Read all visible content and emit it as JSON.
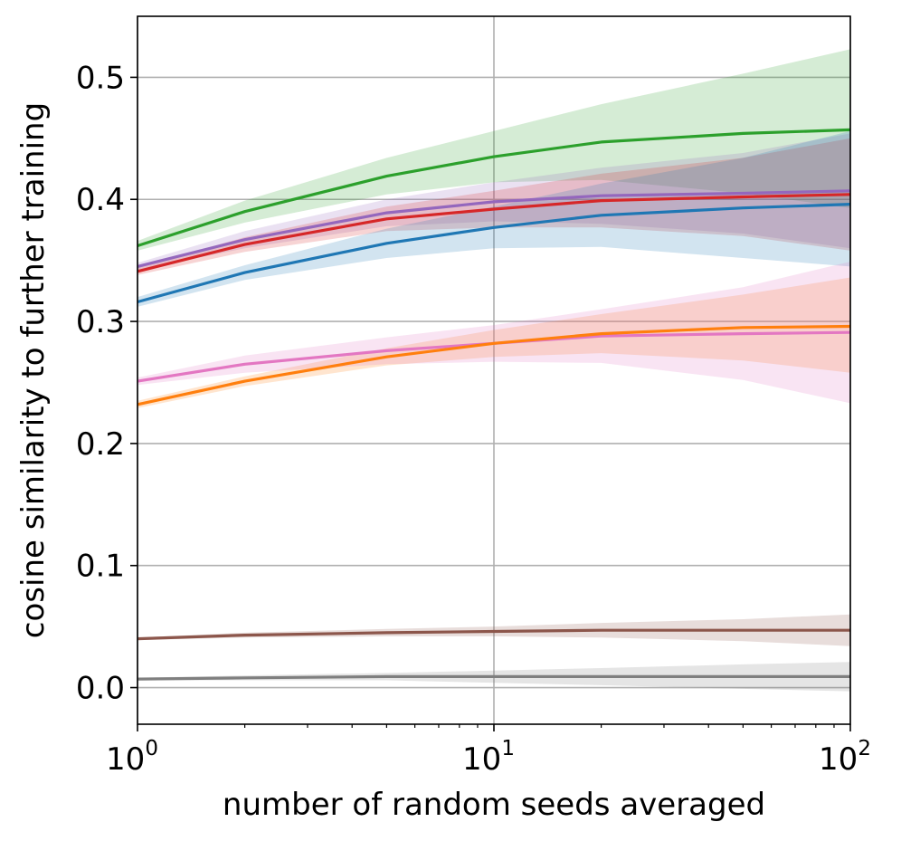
{
  "chart_data": {
    "type": "line",
    "title": "",
    "xlabel": "number of random seeds averaged",
    "ylabel": "cosine similarity to further training",
    "xscale": "log",
    "xlim": [
      1,
      100
    ],
    "ylim": [
      -0.03,
      0.55
    ],
    "x_ticks": [
      {
        "value": 1,
        "base": "10",
        "exp": "0"
      },
      {
        "value": 10,
        "base": "10",
        "exp": "1"
      },
      {
        "value": 100,
        "base": "10",
        "exp": "2"
      }
    ],
    "y_ticks": [
      {
        "value": 0.0,
        "label": "0.0"
      },
      {
        "value": 0.1,
        "label": "0.1"
      },
      {
        "value": 0.2,
        "label": "0.2"
      },
      {
        "value": 0.3,
        "label": "0.3"
      },
      {
        "value": 0.4,
        "label": "0.4"
      },
      {
        "value": 0.5,
        "label": "0.5"
      }
    ],
    "grid": true,
    "x": [
      1,
      2,
      5,
      10,
      20,
      50,
      100
    ],
    "series": [
      {
        "name": "green",
        "color": "#2ca02c",
        "values": [
          0.362,
          0.39,
          0.419,
          0.435,
          0.447,
          0.454,
          0.457
        ],
        "lower": [
          0.358,
          0.381,
          0.404,
          0.414,
          0.416,
          0.405,
          0.393
        ],
        "upper": [
          0.366,
          0.399,
          0.434,
          0.456,
          0.478,
          0.503,
          0.523
        ]
      },
      {
        "name": "purple",
        "color": "#9467bd",
        "values": [
          0.345,
          0.367,
          0.389,
          0.398,
          0.403,
          0.405,
          0.407
        ],
        "lower": [
          0.342,
          0.36,
          0.378,
          0.382,
          0.38,
          0.372,
          0.36
        ],
        "upper": [
          0.348,
          0.374,
          0.4,
          0.414,
          0.426,
          0.438,
          0.454
        ]
      },
      {
        "name": "red",
        "color": "#d62728",
        "values": [
          0.341,
          0.363,
          0.384,
          0.392,
          0.399,
          0.402,
          0.404
        ],
        "lower": [
          0.338,
          0.357,
          0.374,
          0.377,
          0.377,
          0.37,
          0.358
        ],
        "upper": [
          0.344,
          0.369,
          0.394,
          0.407,
          0.421,
          0.434,
          0.45
        ]
      },
      {
        "name": "blue",
        "color": "#1f77b4",
        "values": [
          0.316,
          0.34,
          0.364,
          0.377,
          0.387,
          0.393,
          0.396
        ],
        "lower": [
          0.312,
          0.334,
          0.352,
          0.36,
          0.361,
          0.352,
          0.345
        ],
        "upper": [
          0.32,
          0.346,
          0.376,
          0.394,
          0.413,
          0.434,
          0.456
        ]
      },
      {
        "name": "orange",
        "color": "#ff7f0e",
        "values": [
          0.232,
          0.251,
          0.271,
          0.282,
          0.29,
          0.295,
          0.296
        ],
        "lower": [
          0.229,
          0.247,
          0.264,
          0.271,
          0.274,
          0.268,
          0.258
        ],
        "upper": [
          0.235,
          0.255,
          0.278,
          0.293,
          0.306,
          0.322,
          0.336
        ]
      },
      {
        "name": "pink",
        "color": "#e377c2",
        "values": [
          0.251,
          0.265,
          0.276,
          0.282,
          0.288,
          0.29,
          0.291
        ],
        "lower": [
          0.248,
          0.258,
          0.265,
          0.267,
          0.266,
          0.252,
          0.233
        ],
        "upper": [
          0.254,
          0.272,
          0.287,
          0.297,
          0.31,
          0.328,
          0.349
        ]
      },
      {
        "name": "brown",
        "color": "#8c564b",
        "values": [
          0.04,
          0.043,
          0.045,
          0.046,
          0.047,
          0.047,
          0.047
        ],
        "lower": [
          0.039,
          0.041,
          0.042,
          0.042,
          0.041,
          0.038,
          0.034
        ],
        "upper": [
          0.041,
          0.045,
          0.048,
          0.05,
          0.053,
          0.056,
          0.06
        ]
      },
      {
        "name": "gray",
        "color": "#7f7f7f",
        "values": [
          0.007,
          0.008,
          0.009,
          0.009,
          0.009,
          0.009,
          0.009
        ],
        "lower": [
          0.006,
          0.006,
          0.006,
          0.004,
          0.002,
          -0.001,
          -0.003
        ],
        "upper": [
          0.008,
          0.01,
          0.012,
          0.014,
          0.016,
          0.019,
          0.021
        ]
      }
    ]
  }
}
